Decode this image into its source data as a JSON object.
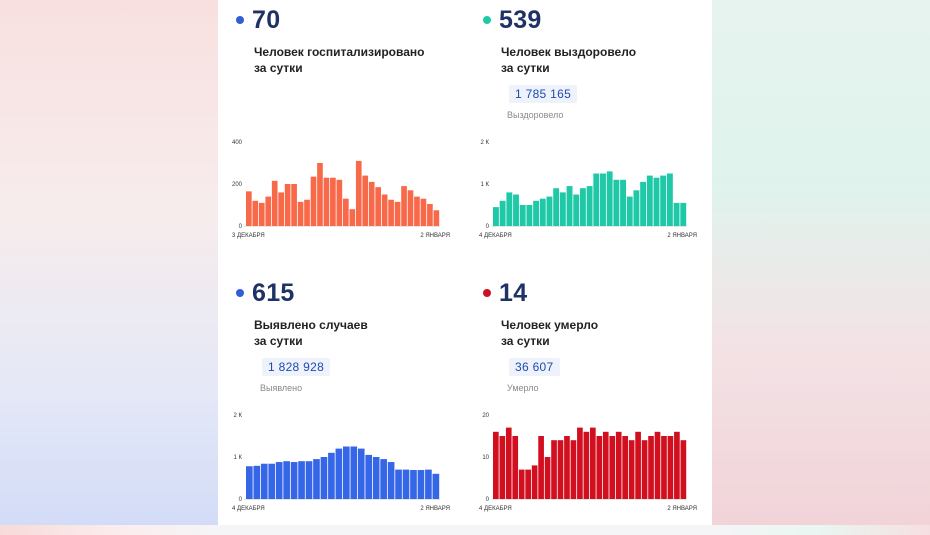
{
  "cards": [
    {
      "id": "hospitalized",
      "value": "70",
      "desc_line1": "Человек госпитализировано",
      "desc_line2": "за сутки",
      "dot_color": "#2f5fd6",
      "bar_color": "#f8694a"
    },
    {
      "id": "recovered",
      "value": "539",
      "desc_line1": "Человек выздоровело",
      "desc_line2": "за сутки",
      "total": "1 785 165",
      "total_label": "Выздоровело",
      "dot_color": "#1fc9a8",
      "bar_color": "#1fc9a8"
    },
    {
      "id": "cases",
      "value": "615",
      "desc_line1": "Выявлено случаев",
      "desc_line2": "за сутки",
      "total": "1 828 928",
      "total_label": "Выявлено",
      "dot_color": "#2f5fd6",
      "bar_color": "#3666e8"
    },
    {
      "id": "deaths",
      "value": "14",
      "desc_line1": "Человек умерло",
      "desc_line2": "за сутки",
      "total": "36 607",
      "total_label": "Умерло",
      "dot_color": "#cc1124",
      "bar_color": "#d10f1f"
    }
  ],
  "chart_data": [
    {
      "type": "bar",
      "title": "Человек госпитализировано за сутки",
      "ylim": [
        0,
        400
      ],
      "ytick_values": [
        0,
        200,
        400
      ],
      "yticks": [
        "0",
        "200",
        "400"
      ],
      "xtick_first": "3 ДЕКАБРЯ",
      "xtick_last": "2 ЯНВАРЯ",
      "values": [
        165,
        120,
        110,
        140,
        215,
        160,
        200,
        200,
        115,
        125,
        235,
        300,
        230,
        230,
        220,
        130,
        80,
        310,
        240,
        210,
        185,
        150,
        125,
        115,
        190,
        170,
        140,
        130,
        105,
        75
      ]
    },
    {
      "type": "bar",
      "title": "Человек выздоровело за сутки",
      "ylim": [
        0,
        2000
      ],
      "ytick_values": [
        0,
        1000,
        2000
      ],
      "yticks": [
        "0",
        "1 К",
        "2 К"
      ],
      "xtick_first": "4 ДЕКАБРЯ",
      "xtick_last": "2 ЯНВАРЯ",
      "values": [
        450,
        600,
        800,
        750,
        500,
        500,
        600,
        650,
        700,
        900,
        800,
        950,
        750,
        900,
        950,
        1250,
        1250,
        1300,
        1100,
        1100,
        700,
        850,
        1050,
        1200,
        1150,
        1200,
        1250,
        550,
        550
      ]
    },
    {
      "type": "bar",
      "title": "Выявлено случаев за сутки",
      "ylim": [
        0,
        2000
      ],
      "ytick_values": [
        0,
        1000,
        2000
      ],
      "yticks": [
        "0",
        "1 К",
        "2 К"
      ],
      "xtick_first": "4 ДЕКАБРЯ",
      "xtick_last": "2 ЯНВАРЯ",
      "values": [
        780,
        790,
        840,
        840,
        880,
        900,
        880,
        900,
        900,
        950,
        1000,
        1100,
        1200,
        1250,
        1250,
        1200,
        1050,
        1000,
        950,
        880,
        700,
        700,
        690,
        690,
        700,
        600
      ]
    },
    {
      "type": "bar",
      "title": "Человек умерло за сутки",
      "ylim": [
        0,
        20
      ],
      "ytick_values": [
        0,
        10,
        20
      ],
      "yticks": [
        "0",
        "10",
        "20"
      ],
      "xtick_first": "4 ДЕКАБРЯ",
      "xtick_last": "2 ЯНВАРЯ",
      "values": [
        16,
        15,
        17,
        15,
        7,
        7,
        8,
        15,
        10,
        14,
        14,
        15,
        14,
        17,
        16,
        17,
        15,
        16,
        15,
        16,
        15,
        14,
        16,
        14,
        15,
        16,
        15,
        15,
        16,
        14
      ]
    }
  ]
}
